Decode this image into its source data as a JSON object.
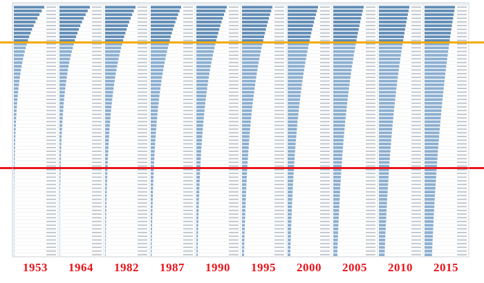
{
  "chart_data": {
    "type": "bar",
    "orientation": "horizontal",
    "description_of_layout": "ranked",
    "panels": [
      {
        "year": "1953",
        "row_count": 68,
        "decay": 0.085,
        "peak": 1.0
      },
      {
        "year": "1964",
        "row_count": 68,
        "decay": 0.075,
        "peak": 1.0
      },
      {
        "year": "1982",
        "row_count": 68,
        "decay": 0.058,
        "peak": 1.0
      },
      {
        "year": "1987",
        "row_count": 68,
        "decay": 0.052,
        "peak": 1.0
      },
      {
        "year": "1990",
        "row_count": 68,
        "decay": 0.047,
        "peak": 1.0
      },
      {
        "year": "1995",
        "row_count": 68,
        "decay": 0.04,
        "peak": 1.0
      },
      {
        "year": "2000",
        "row_count": 68,
        "decay": 0.036,
        "peak": 1.0
      },
      {
        "year": "2005",
        "row_count": 68,
        "decay": 0.03,
        "peak": 1.0
      },
      {
        "year": "2010",
        "row_count": 68,
        "decay": 0.025,
        "peak": 1.0
      },
      {
        "year": "2015",
        "row_count": 68,
        "decay": 0.021,
        "peak": 1.0
      }
    ],
    "reference_lines": [
      {
        "rank": 10,
        "color": "#f2a900"
      },
      {
        "rank": 44,
        "color": "#e8141b"
      }
    ],
    "colors": {
      "bar": "#7ea6cc",
      "bar_dark": "#4f7fae",
      "label_text": "#e8141b",
      "grid": "#e4e7ea"
    }
  }
}
